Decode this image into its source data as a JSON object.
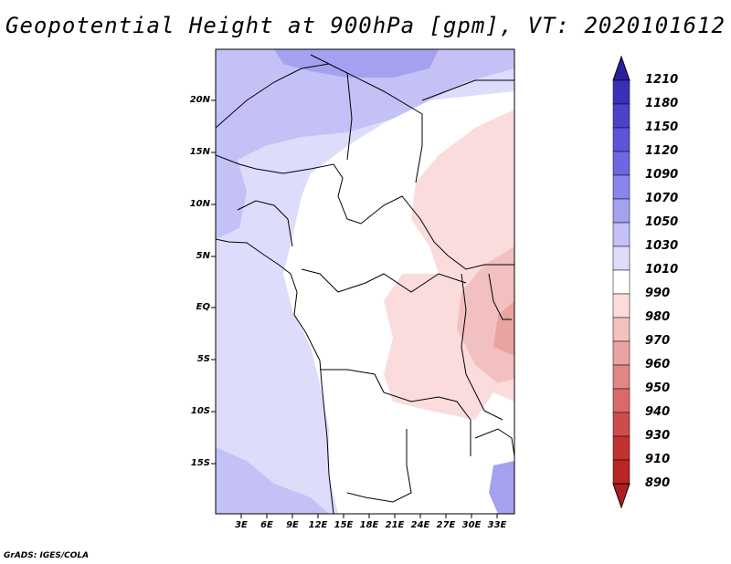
{
  "title": "Geopotential Height at 900hPa [gpm], VT: 2020101612",
  "footer": "GrADS: IGES/COLA",
  "axes": {
    "lat_labels": [
      "20N",
      "15N",
      "10N",
      "5N",
      "EQ",
      "5S",
      "10S",
      "15S"
    ],
    "lon_labels": [
      "3E",
      "6E",
      "9E",
      "12E",
      "15E",
      "18E",
      "21E",
      "24E",
      "27E",
      "30E",
      "33E"
    ]
  },
  "colorbar": {
    "levels": [
      "1210",
      "1180",
      "1150",
      "1120",
      "1090",
      "1070",
      "1050",
      "1030",
      "1010",
      "990",
      "980",
      "970",
      "960",
      "950",
      "940",
      "930",
      "910",
      "890"
    ],
    "colors": [
      "#2a1f9e",
      "#3a30b8",
      "#4b42cc",
      "#5c55d8",
      "#6e68e0",
      "#8a85ea",
      "#a5a1f1",
      "#c3c1f6",
      "#dddcfb",
      "#ffffff",
      "#fbdcdc",
      "#f3c0c0",
      "#e9a3a3",
      "#e08686",
      "#d86a6a",
      "#cf4c4c",
      "#c43131",
      "#b01e1e"
    ]
  },
  "chart_data": {
    "type": "heatmap",
    "title": "Geopotential Height at 900hPa [gpm], VT: 2020101612",
    "variable": "Geopotential Height",
    "level": "900hPa",
    "units": "gpm",
    "valid_time": "2020101612",
    "lon_range": [
      0,
      35
    ],
    "lat_range": [
      -20,
      25
    ],
    "colorbar_levels": [
      1210,
      1180,
      1150,
      1120,
      1090,
      1070,
      1050,
      1030,
      1010,
      990,
      980,
      970,
      960,
      950,
      940,
      930,
      910,
      890
    ]
  }
}
